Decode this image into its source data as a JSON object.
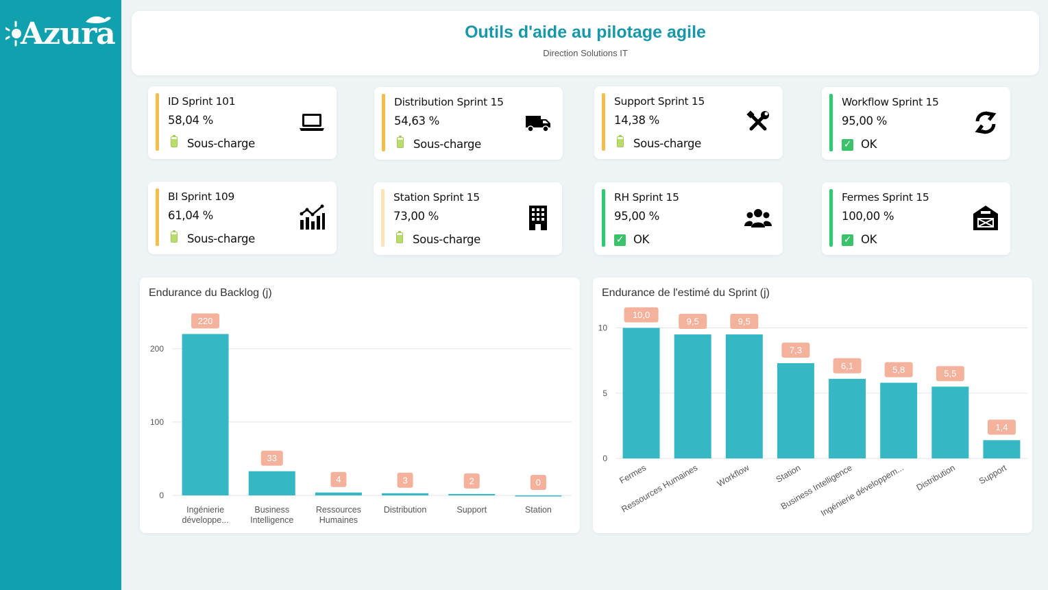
{
  "brand": {
    "logo_text": "Azura"
  },
  "header": {
    "title": "Outils d'aide au pilotage agile",
    "subtitle": "Direction Solutions IT"
  },
  "colors": {
    "accent": "#11a0ad",
    "title": "#1797a8",
    "bar": "#36b8c4",
    "label_bg": "#f4b19c",
    "status_under": "#f4be4e",
    "status_under_light": "#fce3b4",
    "status_ok": "#2ecc71"
  },
  "cards": [
    {
      "name": "ID Sprint 101",
      "percent": "58,04 %",
      "status": "Sous-charge",
      "status_icon": "battery-icon",
      "icon": "laptop-icon",
      "bar_color": "#f4be4e"
    },
    {
      "name": "Distribution Sprint 15",
      "percent": "54,63 %",
      "status": "Sous-charge",
      "status_icon": "battery-icon",
      "icon": "truck-icon",
      "bar_color": "#f4be4e"
    },
    {
      "name": "Support Sprint 15",
      "percent": "14,38 %",
      "status": "Sous-charge",
      "status_icon": "battery-icon",
      "icon": "tools-icon",
      "bar_color": "#f4be4e"
    },
    {
      "name": "Workflow Sprint 15",
      "percent": "95,00 %",
      "status": "OK",
      "status_icon": "check-icon",
      "icon": "recycle-icon",
      "bar_color": "#2ecc71"
    },
    {
      "name": "BI Sprint 109",
      "percent": "61,04 %",
      "status": "Sous-charge",
      "status_icon": "battery-icon",
      "icon": "chart-line-icon",
      "bar_color": "#f4be4e"
    },
    {
      "name": "Station Sprint 15",
      "percent": "73,00 %",
      "status": "Sous-charge",
      "status_icon": "battery-icon",
      "icon": "building-icon",
      "bar_color": "#fce3b4"
    },
    {
      "name": "RH Sprint 15",
      "percent": "95,00 %",
      "status": "OK",
      "status_icon": "check-icon",
      "icon": "users-icon",
      "bar_color": "#2ecc71"
    },
    {
      "name": "Fermes Sprint 15",
      "percent": "100,00 %",
      "status": "OK",
      "status_icon": "check-icon",
      "icon": "barn-icon",
      "bar_color": "#2ecc71"
    }
  ],
  "chart_data": [
    {
      "type": "bar",
      "title": "Endurance du Backlog (j)",
      "categories": [
        "Ingénierie développe...",
        "Business Intelligence",
        "Ressources Humaines",
        "Distribution",
        "Support",
        "Station"
      ],
      "values": [
        220,
        33,
        4,
        3,
        2,
        0
      ],
      "data_labels": [
        "220",
        "33",
        "4",
        "3",
        "2",
        "0"
      ],
      "yticks": [
        "0",
        "100",
        "200"
      ],
      "ylim": [
        0,
        240
      ],
      "grid": true
    },
    {
      "type": "bar",
      "title": "Endurance de l'estimé du Sprint (j)",
      "categories": [
        "Fermes",
        "Ressources Humaines",
        "Workflow",
        "Station",
        "Business Intelligence",
        "Ingénierie développem...",
        "Distribution",
        "Support"
      ],
      "values": [
        10.0,
        9.5,
        9.5,
        7.3,
        6.1,
        5.8,
        5.5,
        1.4
      ],
      "data_labels": [
        "10,0",
        "9,5",
        "9,5",
        "7,3",
        "6,1",
        "5,8",
        "5,5",
        "1,4"
      ],
      "yticks": [
        "0",
        "5",
        "10"
      ],
      "ylim": [
        0,
        10.5
      ],
      "grid": true
    }
  ]
}
